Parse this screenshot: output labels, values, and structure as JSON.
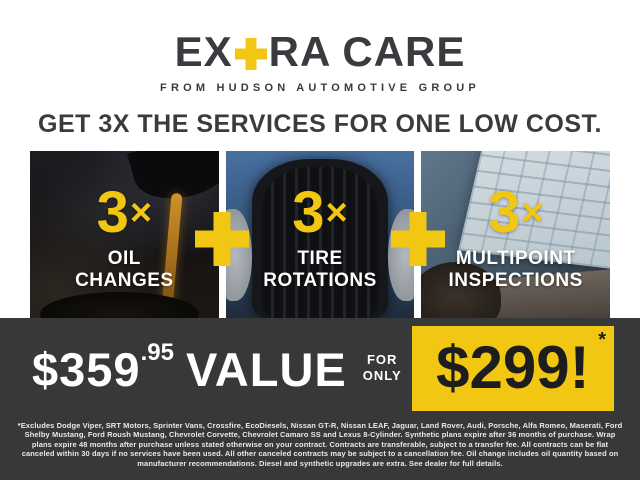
{
  "brand": {
    "logo_prefix": "EX",
    "logo_suffix": "RA CARE",
    "tagline": "FROM HUDSON AUTOMOTIVE GROUP"
  },
  "headline": "GET 3X THE SERVICES FOR ONE LOW COST.",
  "services": [
    {
      "multiplier": "3",
      "times": "×",
      "label_line1": "OIL",
      "label_line2": "CHANGES"
    },
    {
      "multiplier": "3",
      "times": "×",
      "label_line1": "TIRE",
      "label_line2": "ROTATIONS"
    },
    {
      "multiplier": "3",
      "times": "×",
      "label_line1": "MULTIPOINT",
      "label_line2": "INSPECTIONS"
    }
  ],
  "offer": {
    "value_price_dollars": "$359",
    "value_price_cents": ".95",
    "value_label": "VALUE",
    "for_label": "FOR",
    "only_label": "ONLY",
    "sale_price": "$299!",
    "asterisk": "*"
  },
  "disclaimer": "*Excludes Dodge Viper, SRT Motors, Sprinter Vans, Crossfire, EcoDiesels, Nissan GT-R, Nissan LEAF, Jaguar, Land Rover, Audi, Porsche, Alfa Romeo, Maserati, Ford Shelby Mustang, Ford Roush Mustang, Chevrolet Corvette, Chevrolet Camaro SS and Lexus 8-Cylinder. Synthetic plans expire after 36 months of purchase. Wrap plans expire 48 months after purchase unless stated otherwise on your contract. Contracts are transferable, subject to a transfer fee. All contracts can be flat canceled within 30 days if no services have been used. All other canceled contracts may be subject to a cancellation fee. Oil change includes oil quantity based on manufacturer recommendations. Diesel and synthetic upgrades are extra. See dealer for full details.",
  "colors": {
    "accent_yellow": "#F2C713",
    "dark_charcoal": "#3A3B3F",
    "band_background": "#37383A",
    "text_white": "#FFFFFF"
  }
}
